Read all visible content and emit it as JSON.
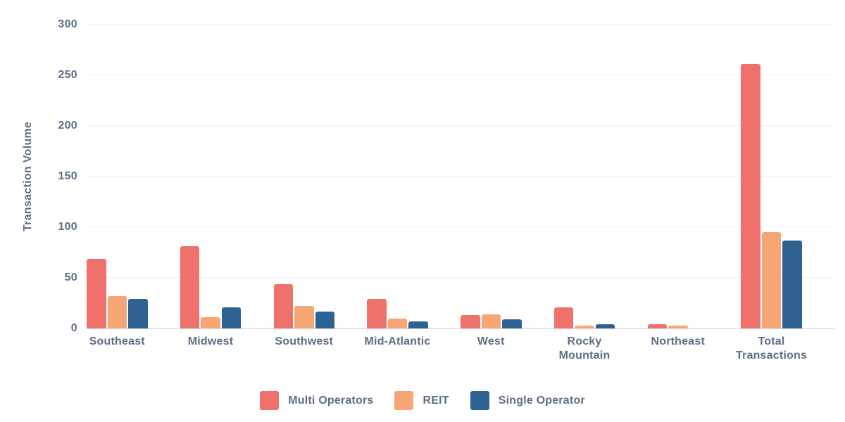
{
  "chart_data": {
    "type": "bar",
    "title": "",
    "xlabel": "",
    "ylabel": "Transaction Volume",
    "ylim": [
      0,
      300
    ],
    "yticks": [
      0,
      50,
      100,
      150,
      200,
      250,
      300
    ],
    "grid": true,
    "legend_position": "bottom",
    "categories": [
      "Southeast",
      "Midwest",
      "Southwest",
      "Mid-Atlantic",
      "West",
      "Rocky Mountain",
      "Northeast",
      "Total Transactions"
    ],
    "series": [
      {
        "name": "Multi Operators",
        "color": "#F0716B",
        "values": [
          69,
          81,
          44,
          29,
          13,
          21,
          4,
          261
        ]
      },
      {
        "name": "REIT",
        "color": "#F6A575",
        "values": [
          32,
          11,
          22,
          10,
          14,
          3,
          3,
          95
        ]
      },
      {
        "name": "Single Operator",
        "color": "#2F6193",
        "values": [
          29,
          21,
          17,
          7,
          9,
          4,
          0,
          87
        ]
      }
    ]
  },
  "colors": {
    "background": "#FFFFFF",
    "axis_text": "#5C6E87",
    "gridline": "#F0F1F4",
    "baseline": "#E0E5EB",
    "boundary_tick": "#DFE3E9"
  }
}
